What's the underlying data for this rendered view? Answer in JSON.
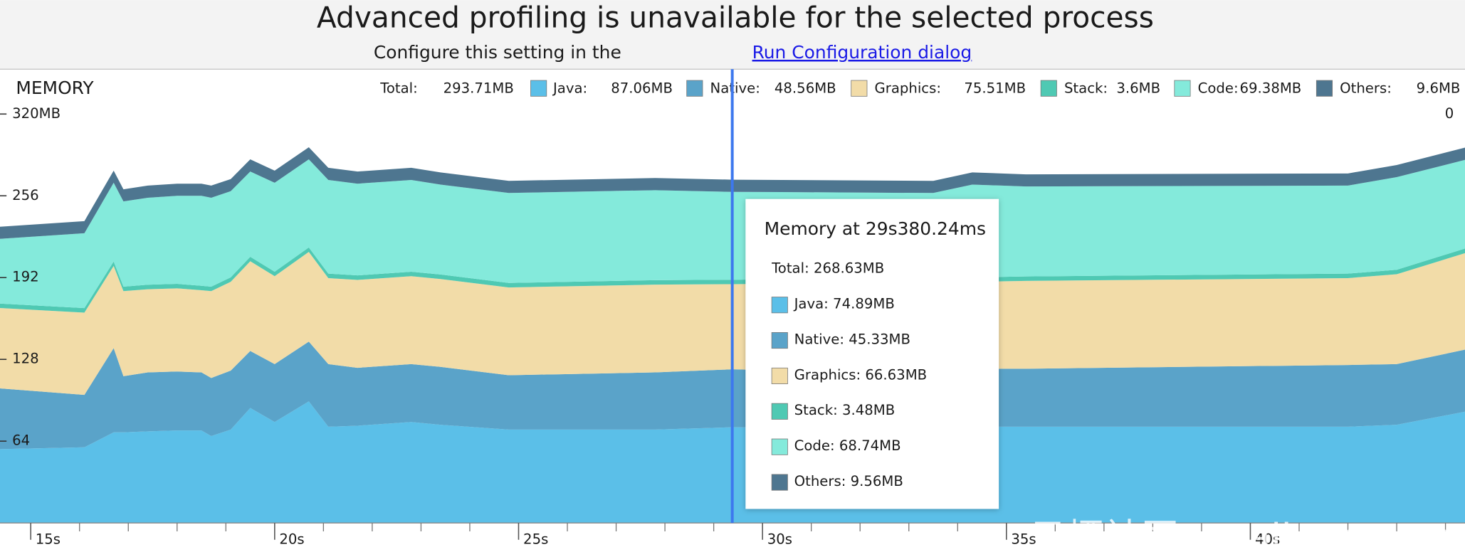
{
  "header": {
    "title": "Advanced profiling is unavailable for the selected process",
    "subtitle": "Configure this setting in the",
    "link": "Run Configuration dialog"
  },
  "panel_title": "MEMORY",
  "legend": {
    "total_label": "Total:",
    "total_value": "293.71MB",
    "items": [
      {
        "label": "Java:",
        "value": "87.06MB",
        "color": "#5bbfe8"
      },
      {
        "label": "Native:",
        "value": "48.56MB",
        "color": "#5aa3c9"
      },
      {
        "label": "Graphics:",
        "value": "75.51MB",
        "color": "#f2dca8"
      },
      {
        "label": "Stack:",
        "value": "3.6MB",
        "color": "#4fc9b3"
      },
      {
        "label": "Code:",
        "value": "69.38MB",
        "color": "#84eadb"
      },
      {
        "label": "Others:",
        "value": "9.6MB",
        "color": "#4e7690"
      }
    ]
  },
  "tooltip": {
    "title": "Memory at 29s380.24ms",
    "total": "Total: 268.63MB",
    "items": [
      "Java: 74.89MB",
      "Native: 45.33MB",
      "Graphics: 66.63MB",
      "Stack: 3.48MB",
      "Code: 68.74MB",
      "Others: 9.56MB"
    ],
    "cursor_x": 29.38
  },
  "watermark": "云栖社区 yq.aliyun.com",
  "chart_data": {
    "type": "stacked-area",
    "x": [
      14.37,
      16.1,
      16.7,
      16.9,
      17.4,
      18.0,
      18.5,
      18.7,
      19.1,
      19.5,
      20.0,
      20.7,
      21.1,
      21.7,
      22.8,
      23.4,
      24.8,
      27.8,
      29.38,
      30.4,
      33.5,
      34.3,
      35.4,
      42.0,
      43.0,
      44.4
    ],
    "series": [
      {
        "name": "Java",
        "color": "#5bbfe8",
        "values": [
          57.8,
          59.2,
          70.9,
          70.9,
          71.7,
          72.4,
          72.4,
          68.0,
          73.1,
          90.0,
          79.0,
          95.1,
          75.3,
          76.1,
          79.0,
          76.8,
          73.1,
          73.1,
          74.89,
          74.6,
          74.6,
          75.3,
          75.3,
          75.3,
          76.8,
          87.06
        ]
      },
      {
        "name": "Native",
        "color": "#5aa3c9",
        "values": [
          47.5,
          41.0,
          65.9,
          43.9,
          46.1,
          46.1,
          45.4,
          45.4,
          46.1,
          44.6,
          45.3,
          46.8,
          49.0,
          45.3,
          45.3,
          45.3,
          42.5,
          44.7,
          45.33,
          44.6,
          45.3,
          45.4,
          45.4,
          48.3,
          47.5,
          48.56
        ]
      },
      {
        "name": "Graphics",
        "color": "#f2dca8",
        "values": [
          62.9,
          64.4,
          64.3,
          66.6,
          65.1,
          65.1,
          64.3,
          68.0,
          69.5,
          70.2,
          68.8,
          70.2,
          67.3,
          68.8,
          68.8,
          68.8,
          68.7,
          68.7,
          66.63,
          68.0,
          68.8,
          68.0,
          68.7,
          68.0,
          70.3,
          75.51
        ]
      },
      {
        "name": "Stack",
        "color": "#4fc9b3",
        "values": [
          3.5,
          3.5,
          3.5,
          3.5,
          3.5,
          3.5,
          3.5,
          3.5,
          3.5,
          3.5,
          3.5,
          3.5,
          3.5,
          3.5,
          3.5,
          3.5,
          3.5,
          3.5,
          3.48,
          3.5,
          3.5,
          3.5,
          3.5,
          3.5,
          3.5,
          3.6
        ]
      },
      {
        "name": "Code",
        "color": "#84eadb",
        "values": [
          50.6,
          58.6,
          61.6,
          66.7,
          68.1,
          68.9,
          70.4,
          69.6,
          67.4,
          66.7,
          69.6,
          68.9,
          73.3,
          71.8,
          71.8,
          70.4,
          70.4,
          70.4,
          68.74,
          68.2,
          66.0,
          72.6,
          70.4,
          68.9,
          72.5,
          69.38
        ]
      },
      {
        "name": "Others",
        "color": "#4e7690",
        "values": [
          9.5,
          9.5,
          9.5,
          9.5,
          9.5,
          9.5,
          9.5,
          9.5,
          9.5,
          9.5,
          9.5,
          9.5,
          9.5,
          9.5,
          9.5,
          9.5,
          9.5,
          9.5,
          9.56,
          9.5,
          9.5,
          9.5,
          9.5,
          9.5,
          9.5,
          9.6
        ]
      }
    ],
    "xlim": [
      14.37,
      44.4
    ],
    "ylim": [
      0,
      320
    ],
    "yticks": [
      {
        "value": 320,
        "label": "320MB"
      },
      256,
      192,
      128,
      64
    ],
    "xticks": [
      {
        "value": 15,
        "label": "15s"
      },
      {
        "value": 20,
        "label": "20s"
      },
      {
        "value": 25,
        "label": "25s"
      },
      {
        "value": 30,
        "label": "30s"
      },
      {
        "value": 35,
        "label": "35s"
      },
      {
        "value": 40,
        "label": "40s"
      }
    ],
    "minor_xticks": [
      16,
      17,
      18,
      19,
      21,
      22,
      23,
      24,
      26,
      27,
      28,
      29,
      31,
      32,
      33,
      34,
      36,
      37,
      38,
      39,
      41,
      42,
      43,
      44
    ],
    "y2_top_label": "0"
  }
}
